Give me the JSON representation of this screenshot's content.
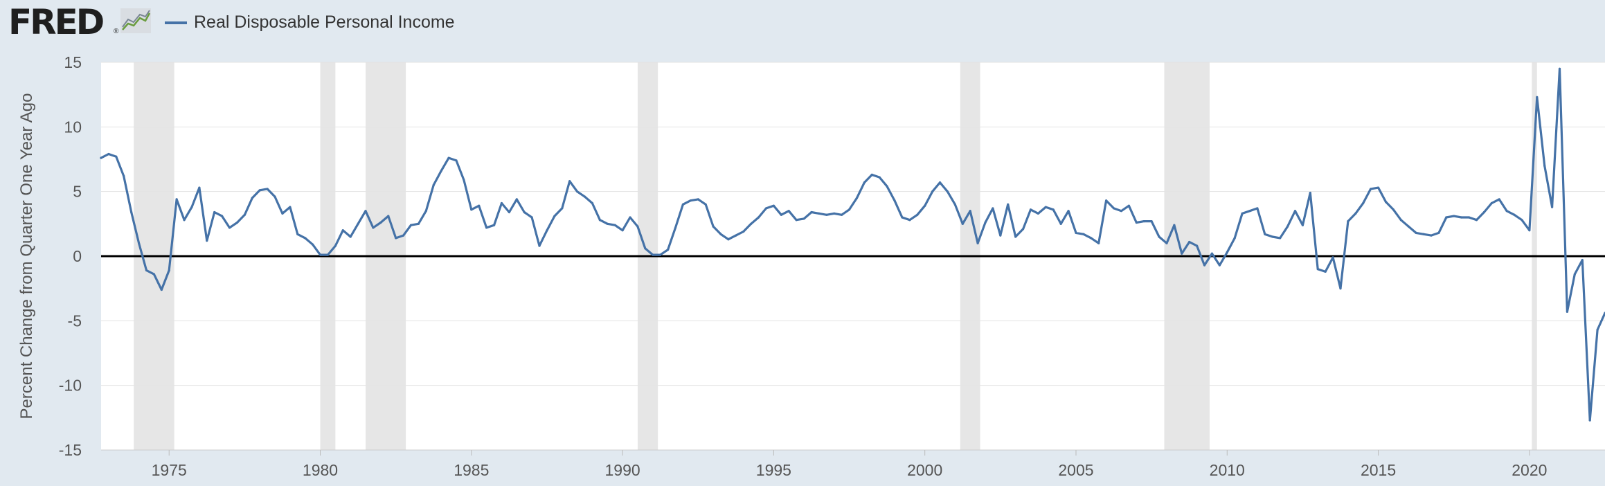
{
  "header": {
    "logo_text": "FRED",
    "logo_reg": "®",
    "legend_label": "Real Disposable Personal Income"
  },
  "chart_data": {
    "type": "line",
    "title": "",
    "legend": [
      "Real Disposable Personal Income"
    ],
    "legend_placement": "top-left",
    "ylabel": "Percent Change from Quarter One Year Ago",
    "xlabel": "",
    "ylim": [
      -15,
      15
    ],
    "yticks": [
      15,
      10,
      5,
      0,
      -5,
      -10,
      -15
    ],
    "xlim": [
      1972.75,
      2022.5
    ],
    "xticks": [
      1975,
      1980,
      1985,
      1990,
      1995,
      2000,
      2005,
      2010,
      2015,
      2020
    ],
    "grid": true,
    "zero_line": true,
    "recessions": [
      [
        1973.83,
        1975.17
      ],
      [
        1980.0,
        1980.5
      ],
      [
        1981.5,
        1982.83
      ],
      [
        1990.5,
        1991.17
      ],
      [
        2001.17,
        2001.83
      ],
      [
        2007.92,
        2009.42
      ],
      [
        2020.08,
        2020.25
      ]
    ],
    "series": [
      {
        "name": "Real Disposable Personal Income",
        "color": "#4572a7",
        "x": [
          1972.75,
          1973.0,
          1973.25,
          1973.5,
          1973.75,
          1974.0,
          1974.25,
          1974.5,
          1974.75,
          1975.0,
          1975.25,
          1975.5,
          1975.75,
          1976.0,
          1976.25,
          1976.5,
          1976.75,
          1977.0,
          1977.25,
          1977.5,
          1977.75,
          1978.0,
          1978.25,
          1978.5,
          1978.75,
          1979.0,
          1979.25,
          1979.5,
          1979.75,
          1980.0,
          1980.25,
          1980.5,
          1980.75,
          1981.0,
          1981.25,
          1981.5,
          1981.75,
          1982.0,
          1982.25,
          1982.5,
          1982.75,
          1983.0,
          1983.25,
          1983.5,
          1983.75,
          1984.0,
          1984.25,
          1984.5,
          1984.75,
          1985.0,
          1985.25,
          1985.5,
          1985.75,
          1986.0,
          1986.25,
          1986.5,
          1986.75,
          1987.0,
          1987.25,
          1987.5,
          1987.75,
          1988.0,
          1988.25,
          1988.5,
          1988.75,
          1989.0,
          1989.25,
          1989.5,
          1989.75,
          1990.0,
          1990.25,
          1990.5,
          1990.75,
          1991.0,
          1991.25,
          1991.5,
          1991.75,
          1992.0,
          1992.25,
          1992.5,
          1992.75,
          1993.0,
          1993.25,
          1993.5,
          1993.75,
          1994.0,
          1994.25,
          1994.5,
          1994.75,
          1995.0,
          1995.25,
          1995.5,
          1995.75,
          1996.0,
          1996.25,
          1996.5,
          1996.75,
          1997.0,
          1997.25,
          1997.5,
          1997.75,
          1998.0,
          1998.25,
          1998.5,
          1998.75,
          1999.0,
          1999.25,
          1999.5,
          1999.75,
          2000.0,
          2000.25,
          2000.5,
          2000.75,
          2001.0,
          2001.25,
          2001.5,
          2001.75,
          2002.0,
          2002.25,
          2002.5,
          2002.75,
          2003.0,
          2003.25,
          2003.5,
          2003.75,
          2004.0,
          2004.25,
          2004.5,
          2004.75,
          2005.0,
          2005.25,
          2005.5,
          2005.75,
          2006.0,
          2006.25,
          2006.5,
          2006.75,
          2007.0,
          2007.25,
          2007.5,
          2007.75,
          2008.0,
          2008.25,
          2008.5,
          2008.75,
          2009.0,
          2009.25,
          2009.5,
          2009.75,
          2010.0,
          2010.25,
          2010.5,
          2010.75,
          2011.0,
          2011.25,
          2011.5,
          2011.75,
          2012.0,
          2012.25,
          2012.5,
          2012.75,
          2013.0,
          2013.25,
          2013.5,
          2013.75,
          2014.0,
          2014.25,
          2014.5,
          2014.75,
          2015.0,
          2015.25,
          2015.5,
          2015.75,
          2016.0,
          2016.25,
          2016.5,
          2016.75,
          2017.0,
          2017.25,
          2017.5,
          2017.75,
          2018.0,
          2018.25,
          2018.5,
          2018.75,
          2019.0,
          2019.25,
          2019.5,
          2019.75,
          2020.0,
          2020.25,
          2020.5,
          2020.75,
          2021.0,
          2021.25,
          2021.5,
          2021.75,
          2022.0,
          2022.25,
          2022.5
        ],
        "y": [
          7.6,
          7.9,
          7.7,
          6.2,
          3.4,
          1.0,
          -1.1,
          -1.4,
          -2.6,
          -1.1,
          4.4,
          2.8,
          3.8,
          5.3,
          1.2,
          3.4,
          3.1,
          2.2,
          2.6,
          3.2,
          4.5,
          5.1,
          5.2,
          4.6,
          3.3,
          3.8,
          1.7,
          1.4,
          0.9,
          0.1,
          0.1,
          0.8,
          2.0,
          1.5,
          2.5,
          3.5,
          2.2,
          2.6,
          3.1,
          1.4,
          1.6,
          2.4,
          2.5,
          3.5,
          5.5,
          6.6,
          7.6,
          7.4,
          5.9,
          3.6,
          3.9,
          2.2,
          2.4,
          4.1,
          3.4,
          4.4,
          3.4,
          3.0,
          0.8,
          2.0,
          3.1,
          3.7,
          5.8,
          5.0,
          4.6,
          4.1,
          2.8,
          2.5,
          2.4,
          2.0,
          3.0,
          2.3,
          0.6,
          0.1,
          0.1,
          0.5,
          2.2,
          4.0,
          4.3,
          4.4,
          4.0,
          2.3,
          1.7,
          1.3,
          1.6,
          1.9,
          2.5,
          3.0,
          3.7,
          3.9,
          3.2,
          3.5,
          2.8,
          2.9,
          3.4,
          3.3,
          3.2,
          3.3,
          3.2,
          3.6,
          4.5,
          5.7,
          6.3,
          6.1,
          5.4,
          4.3,
          3.0,
          2.8,
          3.2,
          3.9,
          5.0,
          5.7,
          5.0,
          4.0,
          2.5,
          3.5,
          1.0,
          2.6,
          3.7,
          1.6,
          4.0,
          1.5,
          2.1,
          3.6,
          3.3,
          3.8,
          3.6,
          2.5,
          3.5,
          1.8,
          1.7,
          1.4,
          1.0,
          4.3,
          3.7,
          3.5,
          3.9,
          2.6,
          2.7,
          2.7,
          1.5,
          1.0,
          2.4,
          0.2,
          1.1,
          0.8,
          -0.7,
          0.2,
          -0.7,
          0.3,
          1.4,
          3.3,
          3.5,
          3.7,
          1.7,
          1.5,
          1.4,
          2.3,
          3.5,
          2.4,
          4.9,
          -1.0,
          -1.2,
          -0.1,
          -2.5,
          2.7,
          3.3,
          4.1,
          5.2,
          5.3,
          4.2,
          3.6,
          2.8,
          2.3,
          1.8,
          1.7,
          1.6,
          1.8,
          3.0,
          3.1,
          3.0,
          3.0,
          2.8,
          3.4,
          4.1,
          4.4,
          3.5,
          3.2,
          2.8,
          2.0,
          12.3,
          7.0,
          3.8,
          14.5,
          -4.3,
          -1.4,
          -0.3,
          -12.7,
          -5.7,
          -4.4
        ]
      }
    ]
  }
}
